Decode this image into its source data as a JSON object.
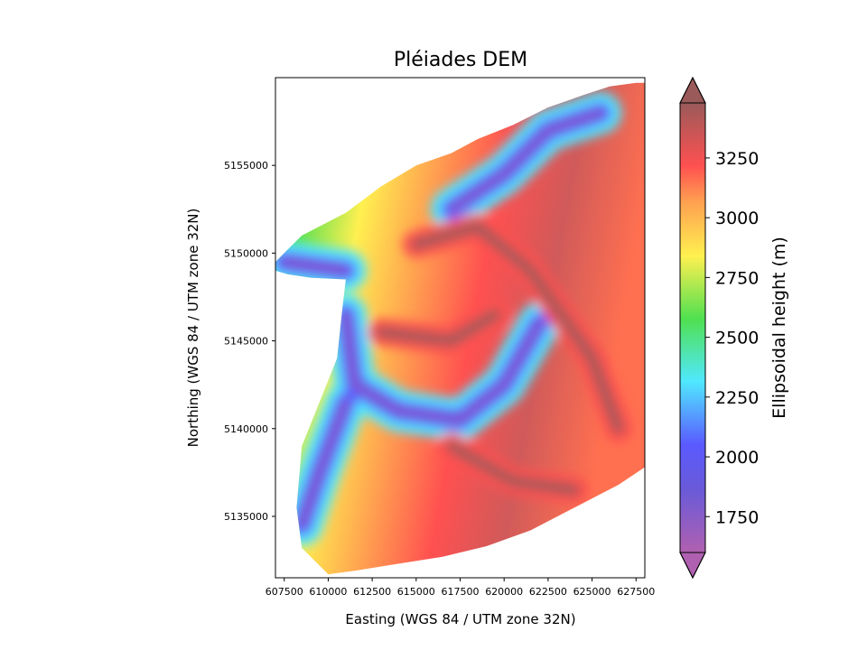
{
  "chart_data": {
    "type": "heatmap",
    "title": "Pléiades DEM",
    "xlabel": "Easting (WGS 84 / UTM zone 32N)",
    "ylabel": "Northing (WGS 84 / UTM zone 32N)",
    "xlim": [
      607000,
      628000
    ],
    "ylim": [
      5131500,
      5160000
    ],
    "xticks": [
      "607500",
      "610000",
      "612500",
      "615000",
      "617500",
      "620000",
      "622500",
      "625000",
      "627500"
    ],
    "yticks": [
      "5135000",
      "5140000",
      "5145000",
      "5150000",
      "5155000"
    ],
    "colorbar": {
      "label": "Ellipsoidal height (m)",
      "range": [
        1600,
        3480
      ],
      "ticks": [
        "1750",
        "2000",
        "2250",
        "2500",
        "2750",
        "3000",
        "3250"
      ],
      "extend": "both",
      "colormap": "rainbow",
      "colors": [
        "#b060b0",
        "#5a5aff",
        "#50e8ff",
        "#50e050",
        "#fff050",
        "#ff5050",
        "#9a5a5a"
      ]
    },
    "valleys": [
      {
        "name": "",
        "points": [
          [
            611000,
            5146500
          ],
          [
            611500,
            5142500
          ],
          [
            614000,
            5141000
          ],
          [
            617500,
            5140500
          ],
          [
            620000,
            5142500
          ],
          [
            622000,
            5146000
          ]
        ]
      },
      {
        "name": "",
        "points": [
          [
            608500,
            5134500
          ],
          [
            609500,
            5137500
          ],
          [
            611000,
            5141500
          ]
        ]
      },
      {
        "name": "",
        "points": [
          [
            617000,
            5152500
          ],
          [
            620000,
            5154500
          ],
          [
            622500,
            5157000
          ],
          [
            625500,
            5158000
          ]
        ]
      },
      {
        "name": "",
        "points": [
          [
            607500,
            5149500
          ],
          [
            611000,
            5149000
          ]
        ]
      }
    ],
    "ridges": [
      {
        "name": "",
        "points": [
          [
            615000,
            5150500
          ],
          [
            618500,
            5151500
          ],
          [
            621500,
            5149000
          ],
          [
            625000,
            5144000
          ],
          [
            626500,
            5140000
          ]
        ]
      },
      {
        "name": "",
        "points": [
          [
            617000,
            5139000
          ],
          [
            620500,
            5137000
          ],
          [
            624000,
            5136500
          ]
        ]
      },
      {
        "name": "",
        "points": [
          [
            613000,
            5145500
          ],
          [
            617000,
            5145000
          ],
          [
            619500,
            5146500
          ]
        ]
      }
    ]
  }
}
